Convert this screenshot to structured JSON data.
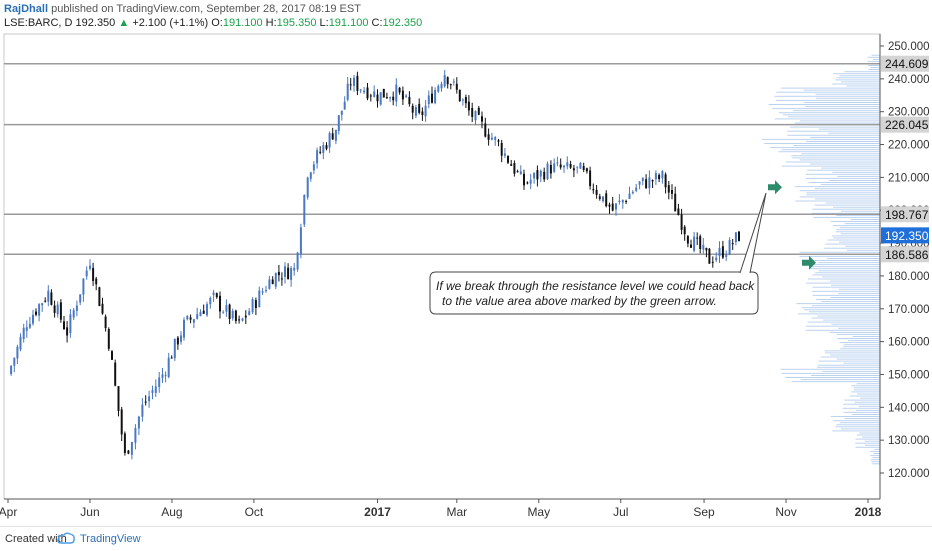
{
  "header": {
    "author": "RajDhall",
    "published": "published on TradingView.com, September 28, 2017 08:19 EST",
    "symbol": "LSE:BARC, D",
    "last": "192.350",
    "change": "+2.100 (+1.1%)",
    "ohlc_labels": [
      "O:",
      "H:",
      "L:",
      "C:"
    ],
    "ohlc_values": [
      "191.100",
      "195.350",
      "191.100",
      "192.350"
    ]
  },
  "footer": {
    "created": "Created with",
    "brand": "TradingView"
  },
  "chart_data": {
    "type": "candlestick",
    "x_axis_labels": [
      "Apr",
      "Jun",
      "Aug",
      "Oct",
      "2017",
      "Mar",
      "May",
      "Jul",
      "Sep",
      "Nov",
      "2018"
    ],
    "y_ticks": [
      120,
      130,
      140,
      150,
      160,
      170,
      180,
      190,
      200,
      210,
      220,
      230,
      240,
      250
    ],
    "y_tick_labels": [
      "120.000",
      "130.000",
      "140.000",
      "150.000",
      "160.000",
      "170.000",
      "180.000",
      "190.000",
      "200.000",
      "210.000",
      "220.000",
      "230.000",
      "240.000",
      "250.000"
    ],
    "ylim": [
      115,
      254
    ],
    "last_price": 192.35,
    "last_price_label": "192.350",
    "levels": [
      {
        "value": 244.609,
        "label": "244.609"
      },
      {
        "value": 226.045,
        "label": "226.045"
      },
      {
        "value": 198.767,
        "label": "198.767"
      },
      {
        "value": 186.586,
        "label": "186.586"
      }
    ],
    "price_path": [
      {
        "date": "2016-04-01",
        "close": 150
      },
      {
        "date": "2016-04-15",
        "close": 166
      },
      {
        "date": "2016-05-01",
        "close": 175
      },
      {
        "date": "2016-05-15",
        "close": 163
      },
      {
        "date": "2016-06-01",
        "close": 185
      },
      {
        "date": "2016-06-15",
        "close": 160
      },
      {
        "date": "2016-06-27",
        "close": 125
      },
      {
        "date": "2016-07-10",
        "close": 140
      },
      {
        "date": "2016-07-25",
        "close": 150
      },
      {
        "date": "2016-08-10",
        "close": 165
      },
      {
        "date": "2016-09-01",
        "close": 173
      },
      {
        "date": "2016-09-20",
        "close": 165
      },
      {
        "date": "2016-10-15",
        "close": 180
      },
      {
        "date": "2016-10-31",
        "close": 182
      },
      {
        "date": "2016-11-10",
        "close": 212
      },
      {
        "date": "2016-12-01",
        "close": 225
      },
      {
        "date": "2016-12-12",
        "close": 239
      },
      {
        "date": "2017-01-01",
        "close": 235
      },
      {
        "date": "2017-01-15",
        "close": 236
      },
      {
        "date": "2017-02-01",
        "close": 228
      },
      {
        "date": "2017-02-20",
        "close": 242
      },
      {
        "date": "2017-03-10",
        "close": 230
      },
      {
        "date": "2017-04-01",
        "close": 220
      },
      {
        "date": "2017-04-20",
        "close": 208
      },
      {
        "date": "2017-05-10",
        "close": 213
      },
      {
        "date": "2017-06-01",
        "close": 212
      },
      {
        "date": "2017-06-25",
        "close": 200
      },
      {
        "date": "2017-07-15",
        "close": 208
      },
      {
        "date": "2017-08-01",
        "close": 210
      },
      {
        "date": "2017-08-20",
        "close": 192
      },
      {
        "date": "2017-09-05",
        "close": 185
      },
      {
        "date": "2017-09-20",
        "close": 189
      },
      {
        "date": "2017-09-27",
        "close": 192.35
      }
    ],
    "volume_profile": [
      {
        "price": 125,
        "volume": 8
      },
      {
        "price": 130,
        "volume": 20
      },
      {
        "price": 135,
        "volume": 40
      },
      {
        "price": 140,
        "volume": 30
      },
      {
        "price": 145,
        "volume": 25
      },
      {
        "price": 150,
        "volume": 80
      },
      {
        "price": 155,
        "volume": 50
      },
      {
        "price": 160,
        "volume": 35
      },
      {
        "price": 165,
        "volume": 60
      },
      {
        "price": 170,
        "volume": 70
      },
      {
        "price": 175,
        "volume": 55
      },
      {
        "price": 180,
        "volume": 60
      },
      {
        "price": 185,
        "volume": 65
      },
      {
        "price": 190,
        "volume": 45
      },
      {
        "price": 195,
        "volume": 40
      },
      {
        "price": 200,
        "volume": 55
      },
      {
        "price": 205,
        "volume": 70
      },
      {
        "price": 210,
        "volume": 60
      },
      {
        "price": 215,
        "volume": 80
      },
      {
        "price": 220,
        "volume": 95
      },
      {
        "price": 225,
        "volume": 75
      },
      {
        "price": 230,
        "volume": 90
      },
      {
        "price": 235,
        "volume": 85
      },
      {
        "price": 240,
        "volume": 40
      },
      {
        "price": 245,
        "volume": 10
      }
    ],
    "annotation": {
      "lines": [
        "If we break through the resistance level we could head back",
        "to the value area above marked by the green arrow."
      ]
    },
    "arrows": [
      {
        "price": 207
      },
      {
        "price": 184
      }
    ],
    "colors": {
      "up_candle": "#4a78c2",
      "down_candle": "#111111",
      "level_line": "#9a9a9a",
      "level_label_bg": "#d4d4d4",
      "price_label_bg": "#1e6fd9",
      "volume_profile": "#bcd3f0",
      "arrow": "#2e8b6a"
    }
  }
}
